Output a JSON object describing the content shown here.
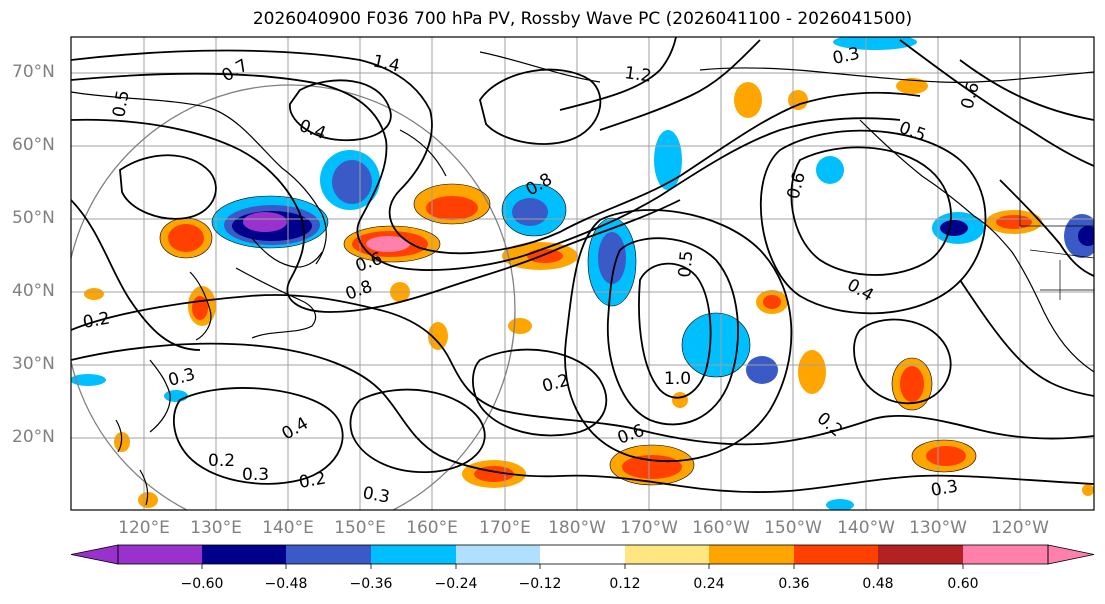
{
  "title": "2026040900 F036 700 hPa PV, Rossby Wave PC (2026041100 - 2026041500)",
  "lat_labels": [
    "70°N",
    "60°N",
    "50°N",
    "40°N",
    "30°N",
    "20°N"
  ],
  "lon_labels": [
    "120°E",
    "130°E",
    "140°E",
    "150°E",
    "160°E",
    "170°E",
    "180°W",
    "170°W",
    "160°W",
    "150°W",
    "140°W",
    "130°W",
    "120°W"
  ],
  "colorbar": {
    "ticks": [
      "−0.60",
      "−0.48",
      "−0.36",
      "−0.24",
      "−0.12",
      "0.12",
      "0.24",
      "0.36",
      "0.48",
      "0.60"
    ],
    "colors": [
      "#9932cc",
      "#00008b",
      "#3a5bc7",
      "#00bfff",
      "#b0e0ff",
      "#ffffff",
      "#ffe680",
      "#ffa500",
      "#ff4000",
      "#b22222",
      "#ff80aa"
    ]
  },
  "contour_labels": [
    "1.4",
    "1.2",
    "0.7",
    "0.5",
    "0.4",
    "0.3",
    "0.2",
    "0.6",
    "0.8",
    "1.0",
    "0.3",
    "0.2",
    "0.4",
    "0.5",
    "0.6",
    "0.3",
    "0.2",
    "0.3",
    "0.2",
    "0.4",
    "0.6",
    "0.2",
    "0.3",
    "0.5",
    "0.6",
    "0.8"
  ]
}
